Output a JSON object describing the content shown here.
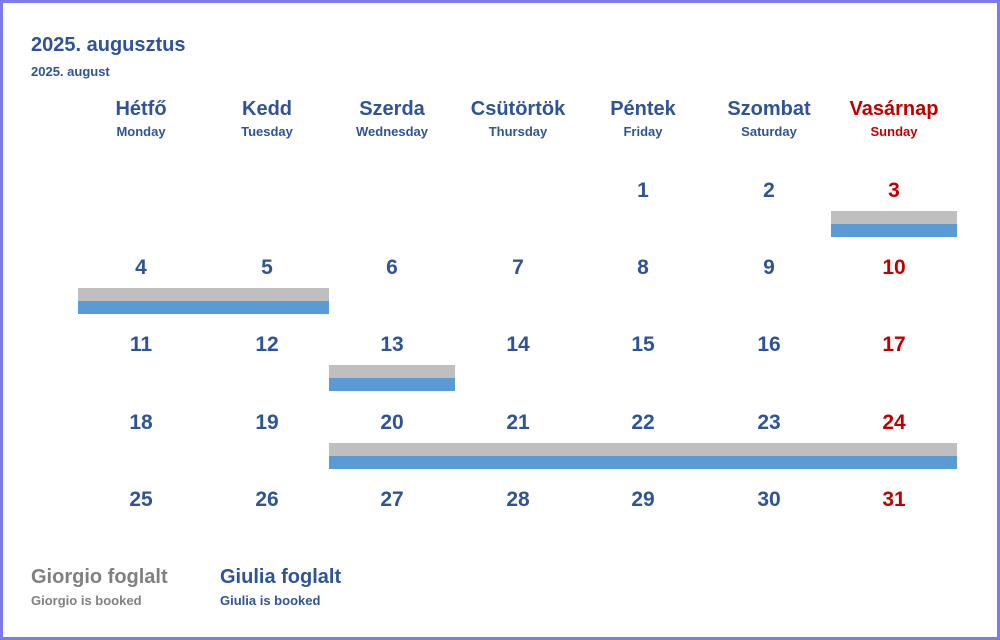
{
  "title": "2025. augusztus",
  "subtitle": "2025. august",
  "weekdays": [
    {
      "hu": "Hétfő",
      "en": "Monday"
    },
    {
      "hu": "Kedd",
      "en": "Tuesday"
    },
    {
      "hu": "Szerda",
      "en": "Wednesday"
    },
    {
      "hu": "Csütörtök",
      "en": "Thursday"
    },
    {
      "hu": "Péntek",
      "en": "Friday"
    },
    {
      "hu": "Szombat",
      "en": "Saturday"
    },
    {
      "hu": "Vasárnap",
      "en": "Sunday"
    }
  ],
  "first_weekday_index": 4,
  "days_in_month": 31,
  "bookings": [
    {
      "person": "giorgio",
      "start": 3,
      "end": 3
    },
    {
      "person": "giulia",
      "start": 3,
      "end": 3
    },
    {
      "person": "giorgio",
      "start": 4,
      "end": 5
    },
    {
      "person": "giulia",
      "start": 4,
      "end": 5
    },
    {
      "person": "giorgio",
      "start": 13,
      "end": 13
    },
    {
      "person": "giulia",
      "start": 13,
      "end": 13
    },
    {
      "person": "giorgio",
      "start": 20,
      "end": 24
    },
    {
      "person": "giulia",
      "start": 20,
      "end": 24
    }
  ],
  "legend": {
    "giorgio": {
      "hu": "Giorgio foglalt",
      "en": "Giorgio is booked",
      "color": "#bfbfbf",
      "text_color": "#808080"
    },
    "giulia": {
      "hu": "Giulia foglalt",
      "en": "Giulia is booked",
      "color": "#5b9bd5",
      "text_color": "#2f5496"
    }
  },
  "colors": {
    "weekday": "#2f5496",
    "sunday": "#c00000",
    "border": "#7b7bea"
  }
}
